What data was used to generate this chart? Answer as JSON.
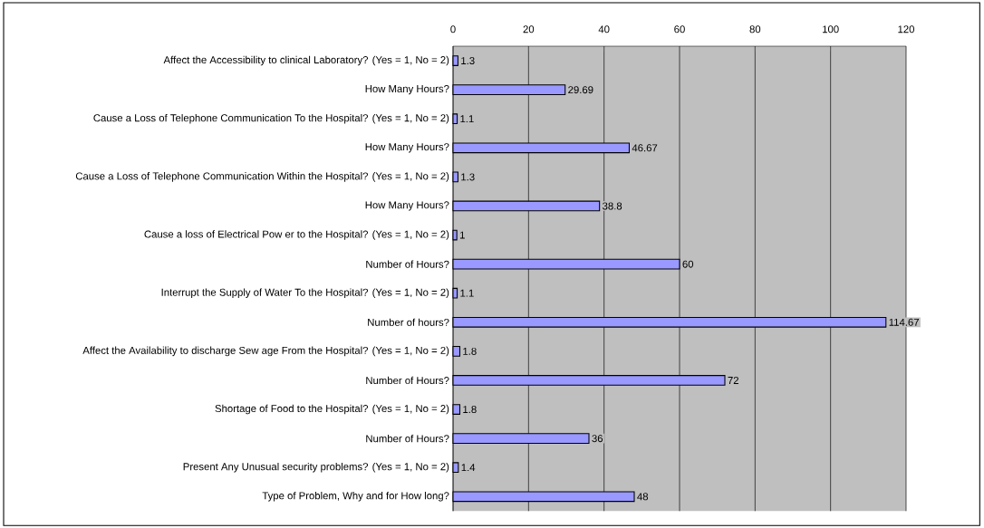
{
  "chart_data": {
    "type": "bar",
    "orientation": "horizontal",
    "categories": [
      "Affect the Accessibility to clinical Laboratory? (Yes = 1, No = 2)",
      "How Many Hours?",
      "Cause a Loss of Telephone Communication To the Hospital? (Yes = 1, No = 2)",
      "How Many Hours?",
      "Cause a Loss of Telephone Communication Within the Hospital? (Yes = 1, No = 2)",
      "How Many Hours?",
      "Cause a loss of Electrical Pow er to the Hospital? (Yes = 1, No = 2)",
      "Number of Hours?",
      "Interrupt the Supply of Water To the Hospital? (Yes = 1, No = 2)",
      "Number of hours?",
      "Affect the Availability to discharge Sew age From the Hospital? (Yes = 1, No = 2)",
      "Number of Hours?",
      "Shortage of Food to the Hospital? (Yes = 1, No = 2)",
      "Number of Hours?",
      "Present Any Unusual security problems? (Yes = 1, No = 2)",
      "Type of Problem, Why and for How long?"
    ],
    "values": [
      1.3,
      29.69,
      1.1,
      46.67,
      1.3,
      38.8,
      1,
      60,
      1.1,
      114.67,
      1.8,
      72,
      1.8,
      36,
      1.4,
      48
    ],
    "color": "#9999ff",
    "xlim": [
      0,
      120
    ],
    "xticks": [
      0,
      20,
      40,
      60,
      80,
      100,
      120
    ],
    "grid": "x",
    "data_labels": true
  }
}
